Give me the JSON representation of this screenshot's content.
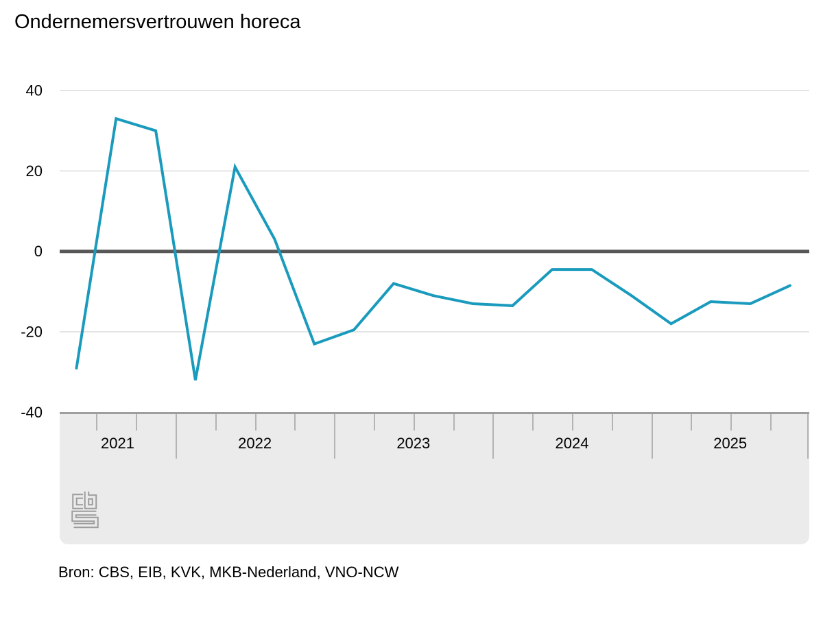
{
  "title": "Ondernemersvertrouwen horeca",
  "source": "Bron: CBS, EIB, KVK, MKB-Nederland, VNO-NCW",
  "logo_name": "CBS",
  "colors": {
    "line": "#1a9bbd",
    "zero_line": "#575757",
    "gridline": "#c9c9c9",
    "panel_bg": "#ebebeb",
    "tick": "#b3b3b3",
    "panel_border": "#9e9e9e",
    "logo": "#9c9c9c",
    "text": "#000000"
  },
  "chart_data": {
    "type": "line",
    "title": "Ondernemersvertrouwen horeca",
    "series_name": "Ondernemersvertrouwen horeca",
    "x": [
      "2021 Q2",
      "2021 Q3",
      "2021 Q4",
      "2022 Q1",
      "2022 Q2",
      "2022 Q3",
      "2022 Q4",
      "2023 Q1",
      "2023 Q2",
      "2023 Q3",
      "2023 Q4",
      "2024 Q1",
      "2024 Q2",
      "2024 Q3",
      "2024 Q4",
      "2025 Q1",
      "2025 Q2",
      "2025 Q3",
      "2025 Q4"
    ],
    "values": [
      -29,
      33,
      30,
      -32,
      21,
      3,
      -23,
      -19.5,
      -8,
      -11,
      -13,
      -13.5,
      -4.5,
      -4.5,
      -11,
      -18,
      -12.5,
      -13,
      -8.5
    ],
    "y_ticks": [
      40,
      20,
      0,
      -20,
      -40
    ],
    "ylim": [
      -40,
      40
    ],
    "x_year_labels": [
      "2021",
      "2022",
      "2023",
      "2024",
      "2025"
    ],
    "grid": "horizontal-light",
    "zero_line": true,
    "legend": "none",
    "xlabel": "",
    "ylabel": ""
  }
}
